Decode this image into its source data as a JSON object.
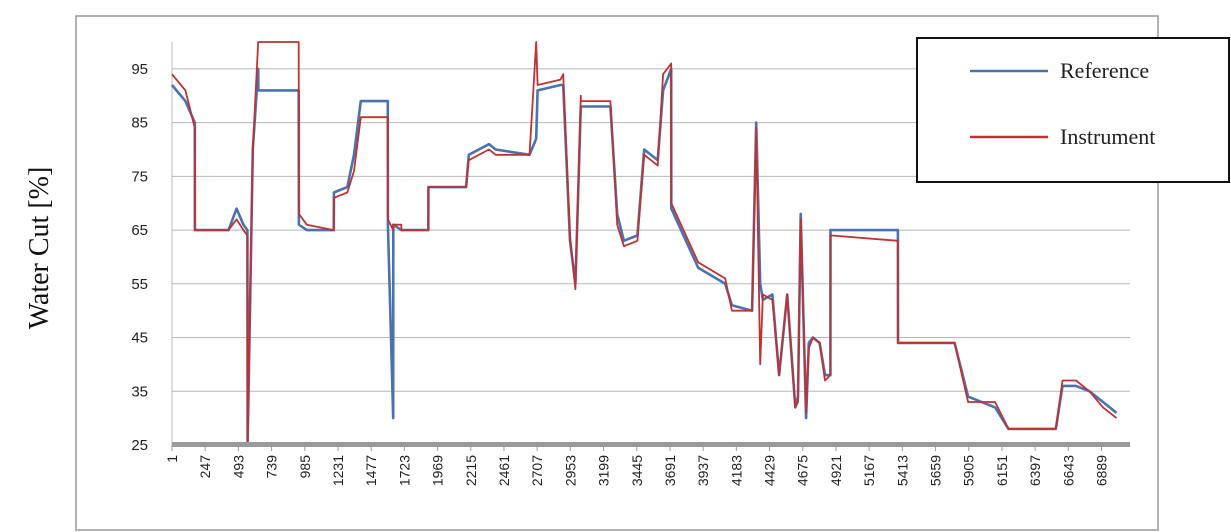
{
  "chart_data": {
    "type": "line",
    "title": "",
    "xlabel": "",
    "ylabel": "Water Cut [%]",
    "ylim": [
      25,
      100
    ],
    "xlim": [
      1,
      7100
    ],
    "y_ticks": [
      "95",
      "85",
      "75",
      "65",
      "55",
      "45",
      "35",
      "25"
    ],
    "y_tick_values": [
      95,
      85,
      75,
      65,
      55,
      45,
      35,
      25
    ],
    "x_ticks": [
      "1",
      "247",
      "493",
      "739",
      "985",
      "1231",
      "1477",
      "1723",
      "1969",
      "2215",
      "2461",
      "2707",
      "2953",
      "3199",
      "3445",
      "3691",
      "3937",
      "4183",
      "4429",
      "4675",
      "4921",
      "5167",
      "5413",
      "5659",
      "5905",
      "6151",
      "6397",
      "6643",
      "6889"
    ],
    "x_tick_values": [
      1,
      247,
      493,
      739,
      985,
      1231,
      1477,
      1723,
      1969,
      2215,
      2461,
      2707,
      2953,
      3199,
      3445,
      3691,
      3937,
      4183,
      4429,
      4675,
      4921,
      5167,
      5413,
      5659,
      5905,
      6151,
      6397,
      6643,
      6889
    ],
    "grid": true,
    "legend_position": "top-right",
    "series": [
      {
        "name": "Reference",
        "color": "#4a72b0",
        "x": [
          1,
          100,
          170,
          171,
          420,
          480,
          530,
          560,
          561,
          600,
          640,
          641,
          940,
          941,
          1000,
          1200,
          1201,
          1300,
          1350,
          1400,
          1430,
          1600,
          1601,
          1640,
          1641,
          1700,
          1701,
          1900,
          1901,
          2180,
          2200,
          2350,
          2400,
          2650,
          2700,
          2710,
          2880,
          2900,
          2950,
          2990,
          3030,
          3031,
          3250,
          3300,
          3350,
          3450,
          3500,
          3600,
          3640,
          3700,
          3701,
          3900,
          4100,
          4150,
          4300,
          4330,
          4360,
          4380,
          4450,
          4500,
          4560,
          4620,
          4640,
          4660,
          4700,
          4720,
          4750,
          4800,
          4840,
          4880,
          4881,
          5380,
          5381,
          5700,
          5750,
          5800,
          5900,
          6100,
          6200,
          6500,
          6550,
          6600,
          6700,
          6800,
          6900,
          7000
        ],
        "y": [
          92,
          89,
          85,
          65,
          65,
          69,
          66,
          65,
          25,
          80,
          95,
          91,
          91,
          66,
          65,
          65,
          72,
          73,
          79,
          89,
          89,
          89,
          66,
          30,
          66,
          65,
          65,
          65,
          73,
          73,
          79,
          81,
          80,
          79,
          82,
          91,
          92,
          92,
          63,
          55,
          88,
          88,
          88,
          68,
          63,
          64,
          80,
          78,
          91,
          95,
          69,
          58,
          55,
          51,
          50,
          85,
          55,
          52,
          53,
          38,
          53,
          32,
          34,
          68,
          30,
          44,
          45,
          44,
          38,
          38,
          65,
          65,
          44,
          44,
          44,
          44,
          34,
          32,
          28,
          28,
          28,
          36,
          36,
          35,
          33,
          31
        ]
      },
      {
        "name": "Instrument",
        "color": "#c03232",
        "x": [
          1,
          100,
          170,
          171,
          420,
          480,
          530,
          560,
          561,
          600,
          640,
          641,
          940,
          941,
          1000,
          1200,
          1201,
          1300,
          1350,
          1400,
          1430,
          1600,
          1601,
          1640,
          1641,
          1700,
          1701,
          1900,
          1901,
          2180,
          2200,
          2350,
          2400,
          2650,
          2700,
          2710,
          2880,
          2900,
          2950,
          2990,
          3030,
          3031,
          3250,
          3300,
          3350,
          3450,
          3500,
          3600,
          3640,
          3700,
          3701,
          3900,
          4100,
          4150,
          4300,
          4330,
          4360,
          4380,
          4450,
          4500,
          4560,
          4620,
          4640,
          4660,
          4700,
          4720,
          4750,
          4800,
          4840,
          4880,
          4881,
          5380,
          5381,
          5700,
          5750,
          5800,
          5900,
          6100,
          6200,
          6500,
          6550,
          6600,
          6700,
          6800,
          6900,
          7000
        ],
        "y": [
          94,
          91,
          84,
          65,
          65,
          67,
          65,
          64,
          25,
          80,
          100,
          100,
          100,
          68,
          66,
          65,
          71,
          72,
          76,
          86,
          86,
          86,
          67,
          65,
          66,
          66,
          65,
          65,
          73,
          73,
          78,
          80,
          79,
          79,
          100,
          92,
          93,
          94,
          64,
          54,
          90,
          89,
          89,
          66,
          62,
          63,
          79,
          77,
          94,
          96,
          70,
          59,
          56,
          50,
          50,
          84,
          40,
          53,
          52,
          38,
          53,
          32,
          33,
          67,
          31,
          43,
          45,
          44,
          37,
          38,
          64,
          63,
          44,
          44,
          44,
          44,
          33,
          33,
          28,
          28,
          28,
          37,
          37,
          35,
          32,
          30
        ]
      }
    ]
  }
}
